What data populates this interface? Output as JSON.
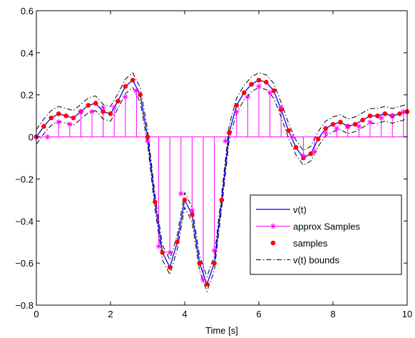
{
  "chart_data": {
    "type": "line",
    "xlabel": "Time [s]",
    "ylabel": "",
    "title": "",
    "xlim": [
      0,
      10
    ],
    "ylim": [
      -0.8,
      0.6
    ],
    "xticks": [
      "0",
      "2",
      "4",
      "6",
      "8",
      "10"
    ],
    "yticks": [
      "−0.8",
      "−0.6",
      "−0.4",
      "−0.2",
      "0",
      "0.2",
      "0.4",
      "0.6"
    ],
    "xtick_values": [
      0,
      2,
      4,
      6,
      8,
      10
    ],
    "ytick_values": [
      -0.8,
      -0.6,
      -0.4,
      -0.2,
      0,
      0.2,
      0.4,
      0.6
    ],
    "grid": false,
    "legend_position": "bottom-right",
    "colors": {
      "signal": "#0000ff",
      "approx": "#ff00ff",
      "samples": "#ff0000",
      "bounds": "#000000"
    },
    "signal_t": [
      0,
      0.2,
      0.4,
      0.6,
      0.8,
      1.0,
      1.2,
      1.4,
      1.6,
      1.8,
      2.0,
      2.2,
      2.4,
      2.6,
      2.8,
      3.0,
      3.2,
      3.4,
      3.6,
      3.8,
      4.0,
      4.2,
      4.4,
      4.6,
      4.8,
      5.0,
      5.2,
      5.4,
      5.6,
      5.8,
      6.0,
      6.2,
      6.4,
      6.6,
      6.8,
      7.0,
      7.2,
      7.4,
      7.6,
      7.8,
      8.0,
      8.2,
      8.4,
      8.6,
      8.8,
      9.0,
      9.2,
      9.4,
      9.6,
      9.8,
      10.0
    ],
    "signal_v": [
      0.0,
      0.05,
      0.09,
      0.11,
      0.1,
      0.09,
      0.12,
      0.15,
      0.16,
      0.12,
      0.11,
      0.17,
      0.24,
      0.27,
      0.2,
      0.0,
      -0.31,
      -0.55,
      -0.62,
      -0.5,
      -0.3,
      -0.37,
      -0.6,
      -0.7,
      -0.6,
      -0.3,
      0.02,
      0.15,
      0.21,
      0.25,
      0.27,
      0.26,
      0.22,
      0.13,
      0.03,
      -0.05,
      -0.1,
      -0.08,
      -0.01,
      0.04,
      0.06,
      0.07,
      0.05,
      0.06,
      0.08,
      0.1,
      0.1,
      0.11,
      0.1,
      0.11,
      0.12
    ],
    "bound_margin": 0.035,
    "samples_t": [
      0,
      0.2,
      0.4,
      0.6,
      0.8,
      1.0,
      1.2,
      1.4,
      1.6,
      1.8,
      2.0,
      2.2,
      2.4,
      2.6,
      2.8,
      3.0,
      3.2,
      3.4,
      3.6,
      3.8,
      4.0,
      4.2,
      4.4,
      4.6,
      4.8,
      5.0,
      5.2,
      5.4,
      5.6,
      5.8,
      6.0,
      6.2,
      6.4,
      6.6,
      6.8,
      7.0,
      7.2,
      7.4,
      7.6,
      7.8,
      8.0,
      8.2,
      8.4,
      8.6,
      8.8,
      9.0,
      9.2,
      9.4,
      9.6,
      9.8,
      10.0
    ],
    "samples_v": [
      0.0,
      0.05,
      0.09,
      0.11,
      0.1,
      0.09,
      0.12,
      0.15,
      0.16,
      0.12,
      0.11,
      0.17,
      0.24,
      0.27,
      0.2,
      0.0,
      -0.31,
      -0.55,
      -0.62,
      -0.5,
      -0.3,
      -0.37,
      -0.6,
      -0.7,
      -0.6,
      -0.3,
      0.02,
      0.15,
      0.21,
      0.25,
      0.27,
      0.26,
      0.22,
      0.13,
      0.03,
      -0.05,
      -0.1,
      -0.08,
      -0.01,
      0.04,
      0.06,
      0.07,
      0.05,
      0.06,
      0.08,
      0.1,
      0.1,
      0.11,
      0.1,
      0.11,
      0.12
    ],
    "approx_t": [
      0,
      0.3,
      0.6,
      0.9,
      1.2,
      1.5,
      1.8,
      2.1,
      2.4,
      2.7,
      3.0,
      3.3,
      3.6,
      3.9,
      4.2,
      4.5,
      4.8,
      5.1,
      5.4,
      5.7,
      6.0,
      6.3,
      6.6,
      6.9,
      7.2,
      7.5,
      7.8,
      8.1,
      8.4,
      8.7,
      9.0,
      9.3,
      9.6,
      9.9
    ],
    "approx_v": [
      0.0,
      0.0,
      0.07,
      0.06,
      0.12,
      0.12,
      0.14,
      0.14,
      0.19,
      0.22,
      -0.02,
      -0.52,
      -0.55,
      -0.27,
      -0.35,
      -0.68,
      -0.54,
      -0.02,
      0.12,
      0.19,
      0.24,
      0.21,
      0.14,
      0.0,
      -0.09,
      -0.07,
      0.02,
      0.04,
      0.05,
      0.05,
      0.07,
      0.09,
      0.1,
      0.12
    ],
    "legend": [
      {
        "key": "signal",
        "label": "v(t)"
      },
      {
        "key": "approx",
        "label": "approx Samples"
      },
      {
        "key": "samples",
        "label": "samples"
      },
      {
        "key": "bounds",
        "label": "v(t) bounds"
      }
    ]
  }
}
